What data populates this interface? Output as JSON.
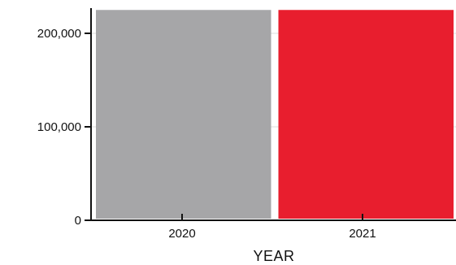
{
  "chart_data": {
    "type": "bar",
    "categories": [
      "2020",
      "2021"
    ],
    "values": [
      225000,
      225000
    ],
    "colors": [
      "#a6a6a8",
      "#e81e2e"
    ],
    "xlabel": "YEAR",
    "ylabel": "",
    "ylim": [
      0,
      225000
    ],
    "y_ticks": [
      0,
      100000,
      200000
    ],
    "y_tick_labels": [
      "0",
      "100,000",
      "200,000"
    ],
    "grid": true,
    "note": "bars exceed visible y-range (clipped at top)"
  }
}
